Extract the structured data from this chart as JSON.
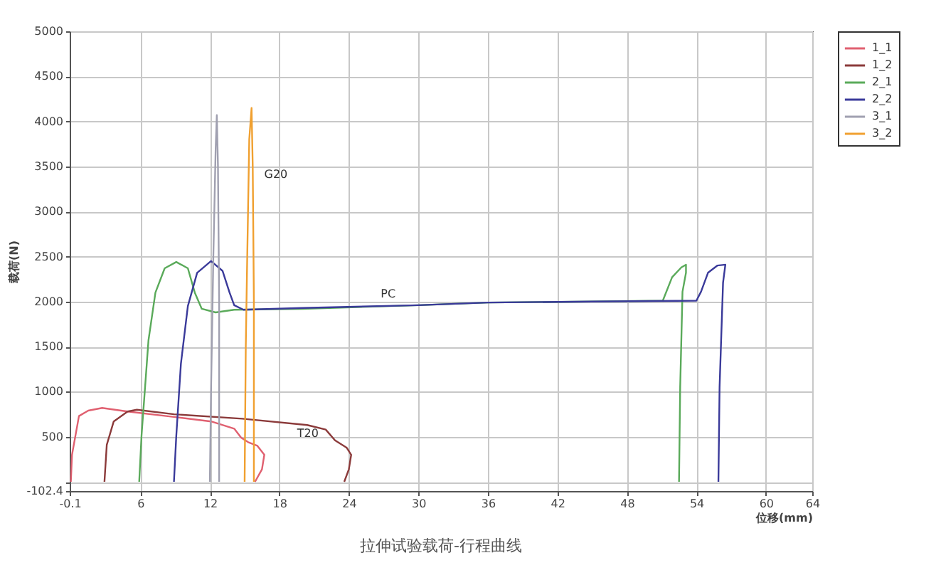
{
  "chart_data": {
    "type": "line",
    "xlabel": "位移(mm)",
    "ylabel": "载荷(N)",
    "xlim": [
      -0.1,
      64
    ],
    "xticks": [
      -0.1,
      6,
      12,
      18,
      24,
      30,
      36,
      42,
      48,
      54,
      60,
      64
    ],
    "ylim": [
      -102.4,
      5000
    ],
    "yticks": [
      -102.4,
      {
        "value": 0,
        "label": null
      },
      500,
      1000,
      1500,
      2000,
      2500,
      3000,
      3500,
      4000,
      4500,
      5000
    ],
    "grid": true,
    "legend": "right",
    "line_style": "solid",
    "marker": "none",
    "annotations": [
      "拉伸试验载荷-行程曲线",
      "G20",
      "PC",
      "T20"
    ],
    "series": [
      {
        "name": "1_1",
        "color": "#e06070",
        "x": [
          0,
          0.1,
          0.7,
          1.5,
          2.7,
          4.9,
          8.9,
          12.1,
          14.1,
          14.7,
          15.3,
          16.1,
          16.7,
          16.5,
          15.9
        ],
        "values": [
          0,
          300,
          730,
          790,
          820,
          780,
          720,
          670,
          590,
          490,
          440,
          400,
          300,
          140,
          0
        ]
      },
      {
        "name": "1_2",
        "color": "#8b3a3a",
        "x": [
          2.9,
          3.1,
          3.7,
          4.9,
          5.7,
          8.9,
          14.8,
          20.4,
          22.0,
          22.8,
          23.8,
          24.2,
          24.0,
          23.6
        ],
        "values": [
          0,
          410,
          670,
          780,
          800,
          750,
          700,
          630,
          580,
          460,
          380,
          300,
          140,
          0
        ]
      },
      {
        "name": "2_1",
        "color": "#5aaa5a",
        "x": [
          5.9,
          6.1,
          6.7,
          7.3,
          8.1,
          9.1,
          10.1,
          10.7,
          11.3,
          12.5,
          14.1,
          20,
          30,
          36,
          45,
          51.1,
          51.9,
          52.7,
          53.1,
          53.1,
          52.8,
          52.6,
          52.5
        ],
        "values": [
          0,
          510,
          1570,
          2100,
          2370,
          2440,
          2370,
          2100,
          1920,
          1880,
          1910,
          1920,
          1960,
          1990,
          2000,
          2010,
          2270,
          2380,
          2410,
          2320,
          2110,
          1050,
          0
        ]
      },
      {
        "name": "2_2",
        "color": "#3a3a9a",
        "x": [
          8.9,
          9.1,
          9.5,
          10.1,
          10.9,
          12.1,
          13.1,
          13.7,
          14.1,
          14.9,
          20,
          30,
          36,
          45,
          54,
          54.4,
          55.0,
          55.8,
          56.5,
          56.3,
          56.0,
          55.9
        ],
        "values": [
          0,
          510,
          1310,
          1950,
          2320,
          2450,
          2340,
          2100,
          1960,
          1910,
          1930,
          1960,
          1990,
          2000,
          2010,
          2110,
          2320,
          2400,
          2410,
          2210,
          1050,
          0
        ]
      },
      {
        "name": "3_1",
        "color": "#a0a0b0",
        "x": [
          12.0,
          12.1,
          12.3,
          12.5,
          12.6,
          12.7,
          12.8,
          12.8
        ],
        "values": [
          0,
          1000,
          2500,
          3700,
          4070,
          3500,
          2000,
          0
        ]
      },
      {
        "name": "3_2",
        "color": "#f0a030",
        "x": [
          15.0,
          15.1,
          15.2,
          15.4,
          15.6,
          15.7,
          15.8,
          15.8
        ],
        "values": [
          0,
          1500,
          2300,
          3800,
          4150,
          3500,
          2000,
          0
        ]
      }
    ]
  }
}
